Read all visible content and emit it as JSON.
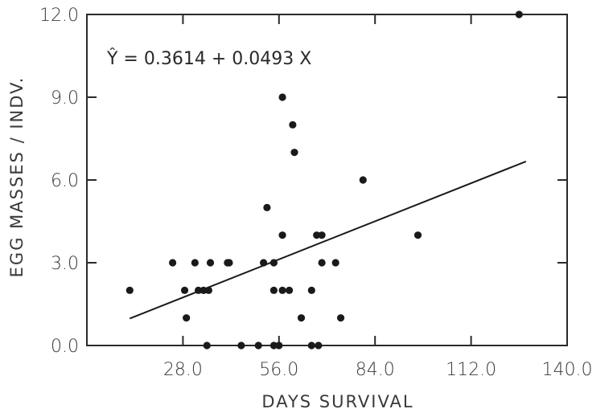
{
  "chart_data": {
    "type": "scatter",
    "title": "",
    "xlabel": "DAYS SURVIVAL",
    "ylabel": "EGG MASSES / INDV.",
    "xlim": [
      0,
      140
    ],
    "ylim": [
      0,
      12
    ],
    "x_ticks": [
      28,
      56,
      84,
      112,
      140
    ],
    "x_tick_labels": [
      "28.0",
      "56.0",
      "84.0",
      "112.0",
      "140.0"
    ],
    "y_ticks": [
      0,
      3,
      6,
      9,
      12
    ],
    "y_tick_labels": [
      "0.0",
      "3.0",
      "6.0",
      "9.0",
      "12.0"
    ],
    "equation": "Ŷ = 0.3614 + 0.0493 X",
    "regression": {
      "intercept": 0.3614,
      "slope": 0.0493,
      "x_range": [
        12.5,
        128
      ]
    },
    "grid": false,
    "points": [
      {
        "x": 12.5,
        "y": 2
      },
      {
        "x": 25,
        "y": 3
      },
      {
        "x": 28.5,
        "y": 2
      },
      {
        "x": 29,
        "y": 1
      },
      {
        "x": 31.5,
        "y": 3
      },
      {
        "x": 32.5,
        "y": 2
      },
      {
        "x": 34,
        "y": 2
      },
      {
        "x": 35,
        "y": 0
      },
      {
        "x": 35.5,
        "y": 2
      },
      {
        "x": 36,
        "y": 3
      },
      {
        "x": 41,
        "y": 3
      },
      {
        "x": 41.5,
        "y": 3
      },
      {
        "x": 45,
        "y": 0
      },
      {
        "x": 50,
        "y": 0
      },
      {
        "x": 51.5,
        "y": 3
      },
      {
        "x": 52.5,
        "y": 5
      },
      {
        "x": 54.5,
        "y": 3
      },
      {
        "x": 54.5,
        "y": 2
      },
      {
        "x": 54.5,
        "y": 0
      },
      {
        "x": 56,
        "y": 0
      },
      {
        "x": 57,
        "y": 9
      },
      {
        "x": 57,
        "y": 4
      },
      {
        "x": 57,
        "y": 2
      },
      {
        "x": 59,
        "y": 2
      },
      {
        "x": 60,
        "y": 8
      },
      {
        "x": 60.5,
        "y": 7
      },
      {
        "x": 62.5,
        "y": 1
      },
      {
        "x": 65.5,
        "y": 2
      },
      {
        "x": 65.5,
        "y": 0
      },
      {
        "x": 67,
        "y": 4
      },
      {
        "x": 67.5,
        "y": 0
      },
      {
        "x": 68.5,
        "y": 3
      },
      {
        "x": 68.5,
        "y": 4
      },
      {
        "x": 72.5,
        "y": 3
      },
      {
        "x": 74,
        "y": 1
      },
      {
        "x": 80.5,
        "y": 6
      },
      {
        "x": 96.5,
        "y": 4
      },
      {
        "x": 126,
        "y": 12
      }
    ]
  }
}
